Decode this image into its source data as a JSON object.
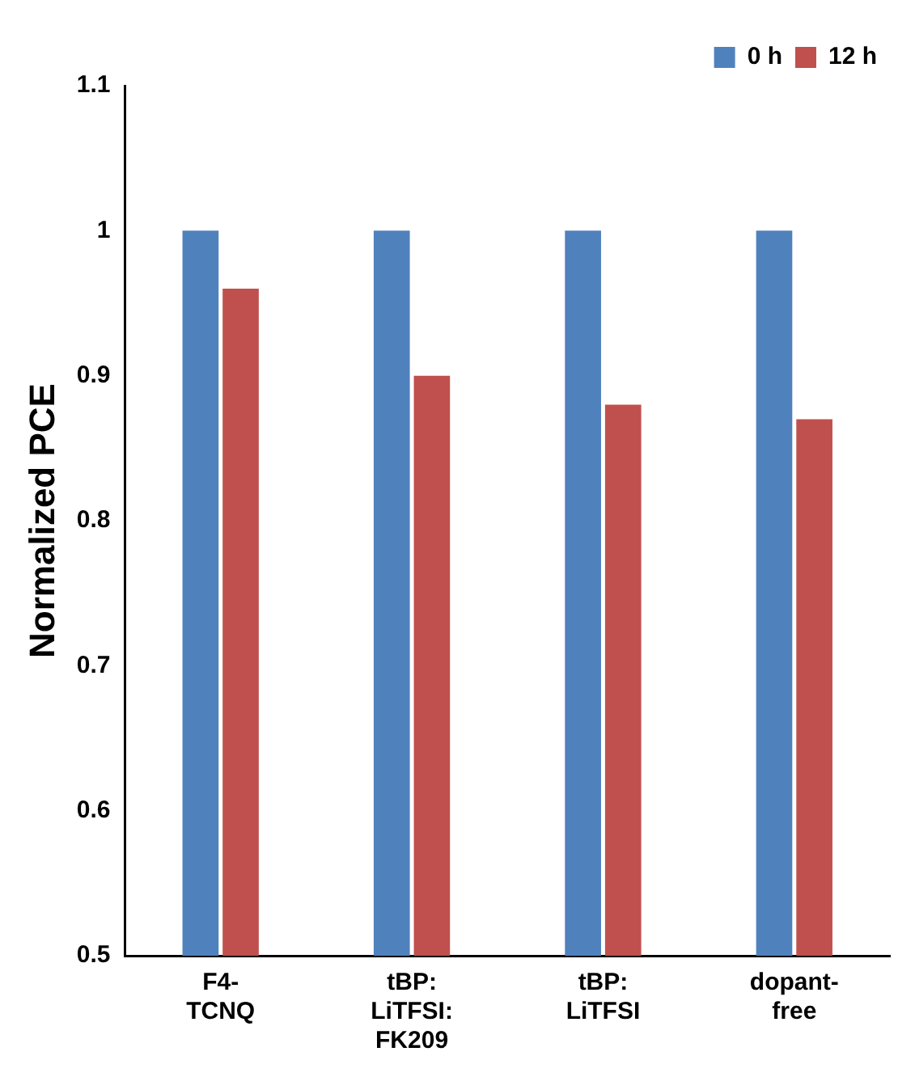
{
  "chart_data": {
    "type": "bar",
    "ylabel": "Normalized PCE",
    "categories": [
      "F4-\nTCNQ",
      "tBP:\nLiTFSI:\nFK209",
      "tBP:\nLiTFSI",
      "dopant-\nfree"
    ],
    "series": [
      {
        "name": "0 h",
        "color": "#4f81bd",
        "values": [
          1,
          1,
          1,
          1
        ]
      },
      {
        "name": "12 h",
        "color": "#c0504d",
        "values": [
          0.96,
          0.9,
          0.88,
          0.87
        ]
      }
    ],
    "ylim": [
      0.5,
      1.1
    ],
    "yticks": [
      0.5,
      0.6,
      0.7,
      0.8,
      0.9,
      1,
      1.1
    ],
    "grid": false,
    "legend": "top right"
  }
}
